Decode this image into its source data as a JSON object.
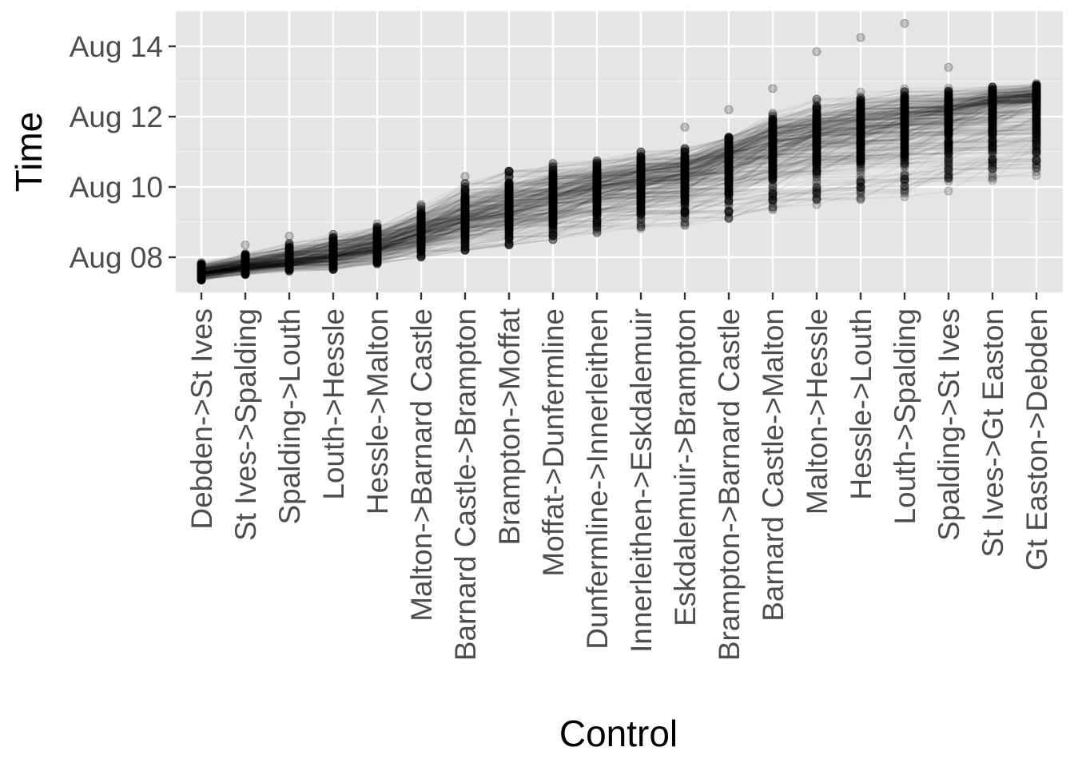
{
  "chart_data": {
    "type": "line",
    "title": "",
    "xlabel": "Control",
    "ylabel": "Time",
    "x_categories": [
      "Debden->St Ives",
      "St Ives->Spalding",
      "Spalding->Louth",
      "Louth->Hessle",
      "Hessle->Malton",
      "Malton->Barnard Castle",
      "Barnard Castle->Brampton",
      "Brampton->Moffat",
      "Moffat->Dunfermline",
      "Dunfermline->Innerleithen",
      "Innerleithen->Eskdalemuir",
      "Eskdalemuir->Brampton",
      "Brampton->Barnard Castle",
      "Barnard Castle->Malton",
      "Malton->Hessle",
      "Hessle->Louth",
      "Louth->Spalding",
      "Spalding->St Ives",
      "St Ives->Gt Easton",
      "Gt Easton->Debden"
    ],
    "y_unit": "days in August",
    "y_ticks": [
      {
        "value": 8,
        "label": "Aug 08"
      },
      {
        "value": 10,
        "label": "Aug 10"
      },
      {
        "value": 12,
        "label": "Aug 12"
      },
      {
        "value": 14,
        "label": "Aug 14"
      }
    ],
    "ylim": [
      7.0,
      15.0
    ],
    "grid": true,
    "series_note_values": {
      "median_time_per_control": [
        7.55,
        7.75,
        7.88,
        8.05,
        8.3,
        8.7,
        9.1,
        9.35,
        9.65,
        9.95,
        10.15,
        10.35,
        10.8,
        11.2,
        11.45,
        11.6,
        11.8,
        12.05,
        12.35,
        12.5
      ],
      "earliest_time_per_control": [
        7.35,
        7.5,
        7.6,
        7.65,
        7.8,
        8.0,
        8.2,
        8.35,
        8.5,
        8.7,
        8.8,
        8.9,
        9.1,
        9.35,
        9.5,
        9.6,
        9.7,
        9.85,
        9.95,
        10.05
      ],
      "latest_time_per_control": [
        7.85,
        8.1,
        8.4,
        8.65,
        8.9,
        9.45,
        10.1,
        10.45,
        10.7,
        10.75,
        11.0,
        11.1,
        11.5,
        12.1,
        12.5,
        12.7,
        12.8,
        12.7,
        12.85,
        12.95
      ],
      "outlier_points": [
        {
          "control": "St Ives->Spalding",
          "y": 8.35
        },
        {
          "control": "Spalding->Louth",
          "y": 8.6
        },
        {
          "control": "Hessle->Malton",
          "y": 8.95
        },
        {
          "control": "Malton->Barnard Castle",
          "y": 9.5
        },
        {
          "control": "Barnard Castle->Brampton",
          "y": 10.3
        },
        {
          "control": "Brampton->Moffat",
          "y": 10.45
        },
        {
          "control": "Eskdalemuir->Brampton",
          "y": 11.7
        },
        {
          "control": "Brampton->Barnard Castle",
          "y": 12.2
        },
        {
          "control": "Barnard Castle->Malton",
          "y": 12.8
        },
        {
          "control": "Malton->Hessle",
          "y": 13.85
        },
        {
          "control": "Hessle->Louth",
          "y": 14.25
        },
        {
          "control": "Louth->Spalding",
          "y": 14.65
        },
        {
          "control": "Spalding->St Ives",
          "y": 13.4
        }
      ]
    }
  },
  "colors": {
    "panel_background": "#e5e5e5",
    "grid_major": "#ffffff",
    "grid_minor": "#f2f2f2",
    "line_color": "#000000",
    "point_color": "#000000",
    "tick_text": "#4d4d4d",
    "axis_ticks": "#333333"
  }
}
